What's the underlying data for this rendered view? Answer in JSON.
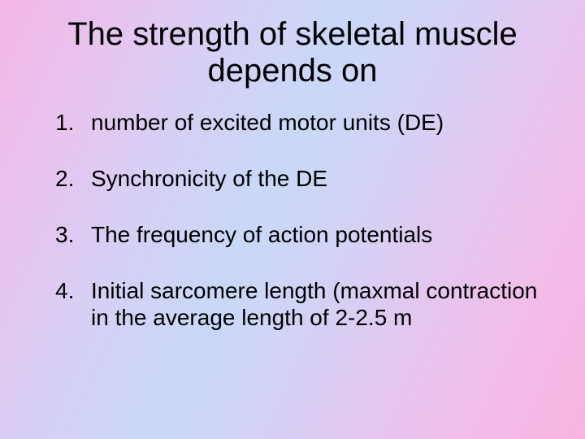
{
  "slide": {
    "title": "The strength of skeletal muscle depends on",
    "items": [
      "number of excited motor units (DE)",
      "Synchronicity of the DE",
      "The frequency of action potentials",
      "Initial sarcomere length (maxmal contraction in the average length of 2-2.5 m"
    ]
  }
}
